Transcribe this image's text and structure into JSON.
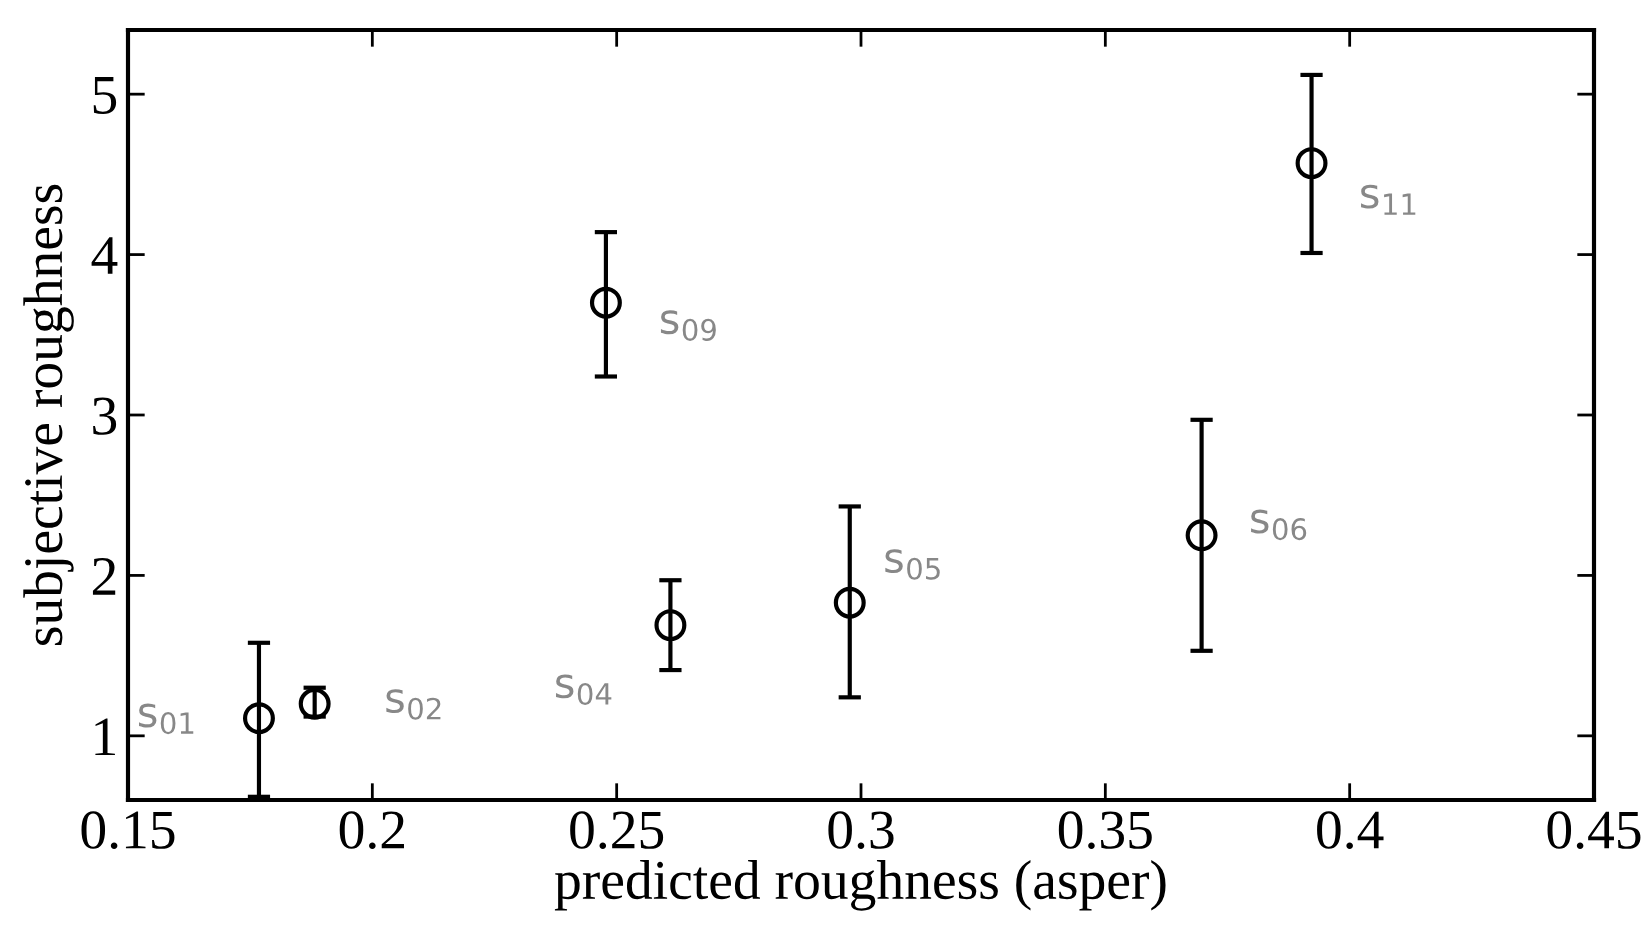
{
  "chart_data": {
    "type": "scatter",
    "xlabel": "predicted roughness (asper)",
    "ylabel": "subjective roughness",
    "x": [
      0.1768,
      0.1882,
      0.2478,
      0.261,
      0.2977,
      0.3697,
      0.3922
    ],
    "values": [
      1.11,
      1.2,
      3.7,
      1.69,
      1.83,
      2.25,
      4.57
    ],
    "errors": [
      [
        0.62,
        1.58
      ],
      [
        1.12,
        1.3
      ],
      [
        3.24,
        4.14
      ],
      [
        1.41,
        1.97
      ],
      [
        1.24,
        2.43
      ],
      [
        1.53,
        2.97
      ],
      [
        4.01,
        5.12
      ]
    ],
    "color": "#000000",
    "marker": "circle",
    "grid": false,
    "legend": false,
    "xlim": [
      0.15,
      0.45
    ],
    "xticks": [
      0.15,
      0.2,
      0.25,
      0.3,
      0.35,
      0.4,
      0.45
    ],
    "ylim": [
      0.6,
      5.4
    ],
    "yticks": [
      1,
      2,
      3,
      4,
      5
    ],
    "annotations": [
      {
        "text": "s$_{01}$",
        "x": 0.1768,
        "y": 1.11
      },
      {
        "text": "s$_{02}$",
        "x": 0.1882,
        "y": 1.2
      },
      {
        "text": "s$_{09}$",
        "x": 0.2478,
        "y": 3.7
      },
      {
        "text": "s$_{04}$",
        "x": 0.261,
        "y": 1.69
      },
      {
        "text": "s$_{05}$",
        "x": 0.2977,
        "y": 1.83
      },
      {
        "text": "s$_{06}$",
        "x": 0.3697,
        "y": 2.25
      },
      {
        "text": "s$_{11}$",
        "x": 0.3922,
        "y": 4.57
      }
    ]
  }
}
